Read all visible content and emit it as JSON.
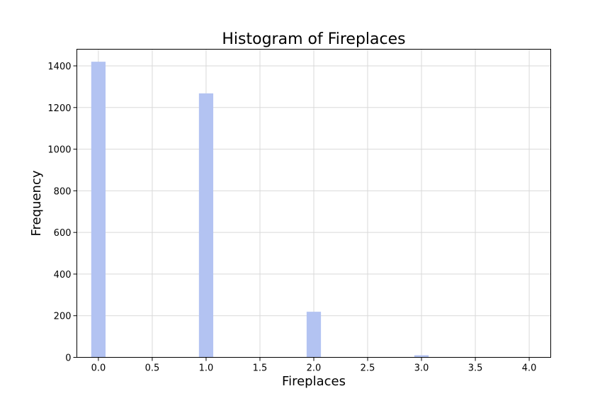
{
  "chart_data": {
    "type": "bar",
    "title": "Histogram of Fireplaces",
    "xlabel": "Fireplaces",
    "ylabel": "Frequency",
    "bar_color": "#b3c3f2",
    "grid": true,
    "xlim": [
      -0.2,
      4.2
    ],
    "ylim": [
      0,
      1480
    ],
    "bin_width": 0.133,
    "x_ticks": [
      0.0,
      0.5,
      1.0,
      1.5,
      2.0,
      2.5,
      3.0,
      3.5,
      4.0
    ],
    "x_tick_labels": [
      "0.0",
      "0.5",
      "1.0",
      "1.5",
      "2.0",
      "2.5",
      "3.0",
      "3.5",
      "4.0"
    ],
    "y_ticks": [
      0,
      200,
      400,
      600,
      800,
      1000,
      1200,
      1400
    ],
    "y_tick_labels": [
      "0",
      "200",
      "400",
      "600",
      "800",
      "1000",
      "1200",
      "1400"
    ],
    "bins": [
      {
        "x": 0.0,
        "value": 1420
      },
      {
        "x": 1.0,
        "value": 1268
      },
      {
        "x": 2.0,
        "value": 219
      },
      {
        "x": 3.0,
        "value": 10
      },
      {
        "x": 4.0,
        "value": 1
      }
    ]
  }
}
